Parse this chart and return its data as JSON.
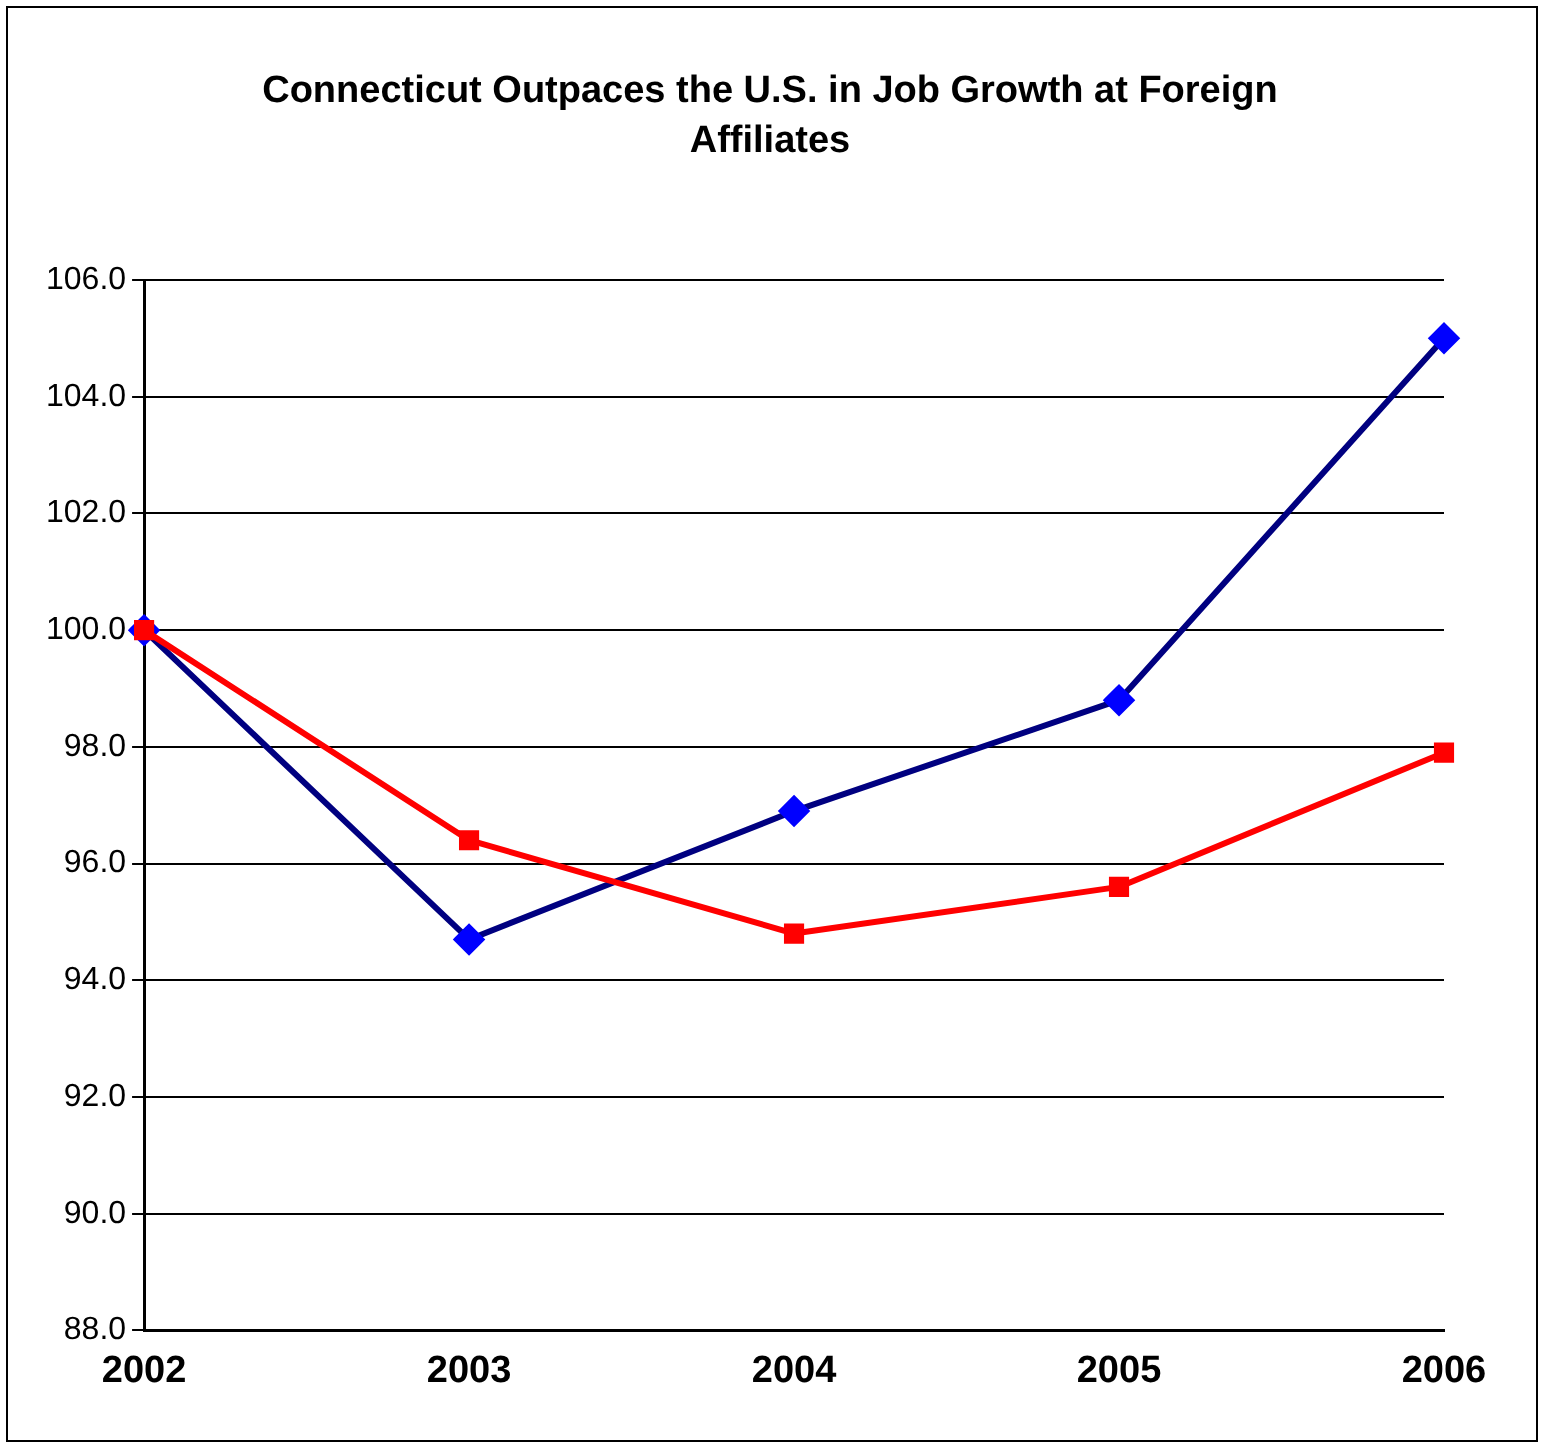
{
  "chart_data": {
    "type": "line",
    "title": "Connecticut Outpaces the U.S. in Job Growth at Foreign Affiliates",
    "categories": [
      "2002",
      "2003",
      "2004",
      "2005",
      "2006"
    ],
    "series": [
      {
        "color": "#000080",
        "marker": "diamond",
        "values": [
          100.0,
          94.7,
          96.9,
          98.8,
          105.0
        ]
      },
      {
        "color": "#ff0000",
        "marker": "square",
        "values": [
          100.0,
          96.4,
          94.8,
          95.6,
          97.9
        ]
      }
    ],
    "ylim": [
      88,
      106
    ],
    "yticks": [
      {
        "value": 88,
        "label": "88.0"
      },
      {
        "value": 90,
        "label": "90.0"
      },
      {
        "value": 92,
        "label": "92.0"
      },
      {
        "value": 94,
        "label": "94.0"
      },
      {
        "value": 96,
        "label": "96.0"
      },
      {
        "value": 98,
        "label": "98.0"
      },
      {
        "value": 100,
        "label": "100.0"
      },
      {
        "value": 102,
        "label": "102.0"
      },
      {
        "value": 104,
        "label": "104.0"
      },
      {
        "value": 106,
        "label": "106.0"
      }
    ],
    "grid": "y",
    "legend": false,
    "line_style": "solid"
  }
}
